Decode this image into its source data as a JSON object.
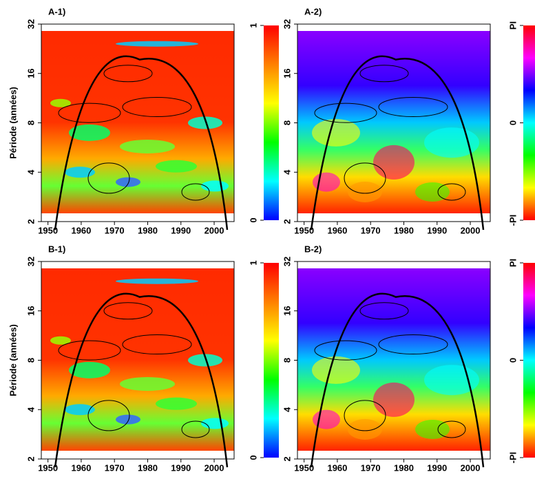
{
  "chart_data": [
    {
      "type": "coherence",
      "title": "A-1)",
      "ylabel": "Période (années)",
      "xlim": [
        1948,
        2006
      ],
      "xticks": [
        1950,
        1960,
        1970,
        1980,
        1990,
        2000
      ],
      "ylim": [
        2,
        32
      ],
      "yticks": [
        2,
        4,
        8,
        16,
        32
      ],
      "log_scale": true,
      "colorbar_lim": [
        0,
        1
      ],
      "colorbar_ticks": [
        0,
        1
      ],
      "colorbar_colors": [
        "#0000ff",
        "#00ffff",
        "#00ff00",
        "#ffff00",
        "#ff8000",
        "#ff0000"
      ]
    },
    {
      "type": "phase",
      "title": "A-2)",
      "xlim": [
        1948,
        2006
      ],
      "xticks": [
        1950,
        1960,
        1970,
        1980,
        1990,
        2000
      ],
      "ylim": [
        2,
        32
      ],
      "yticks": [
        2,
        4,
        8,
        16,
        32
      ],
      "log_scale": true,
      "colorbar_lim": [
        -3.14159,
        3.14159
      ],
      "colorbar_ticks": [
        {
          "value": -3.14159,
          "label": "-PI"
        },
        0,
        {
          "value": 3.14159,
          "label": "PI"
        }
      ],
      "colorbar_colors": [
        "#ff0000",
        "#ffff00",
        "#00ff00",
        "#00ffff",
        "#0000ff",
        "#ff00ff",
        "#ff0000"
      ]
    },
    {
      "type": "coherence",
      "title": "B-1)",
      "ylabel": "Période (années)",
      "xlim": [
        1948,
        2006
      ],
      "xticks": [
        1950,
        1960,
        1970,
        1980,
        1990,
        2000
      ],
      "ylim": [
        2,
        32
      ],
      "yticks": [
        2,
        4,
        8,
        16,
        32
      ],
      "log_scale": true,
      "colorbar_lim": [
        0,
        1
      ],
      "colorbar_ticks": [
        0,
        1
      ],
      "colorbar_colors": [
        "#0000ff",
        "#00ffff",
        "#00ff00",
        "#ffff00",
        "#ff8000",
        "#ff0000"
      ]
    },
    {
      "type": "phase",
      "title": "B-2)",
      "xlim": [
        1948,
        2006
      ],
      "xticks": [
        1950,
        1960,
        1970,
        1980,
        1990,
        2000
      ],
      "ylim": [
        2,
        32
      ],
      "yticks": [
        2,
        4,
        8,
        16,
        32
      ],
      "log_scale": true,
      "colorbar_lim": [
        -3.14159,
        3.14159
      ],
      "colorbar_ticks": [
        {
          "value": -3.14159,
          "label": "-PI"
        },
        0,
        {
          "value": 3.14159,
          "label": "PI"
        }
      ],
      "colorbar_colors": [
        "#ff0000",
        "#ffff00",
        "#00ff00",
        "#00ffff",
        "#0000ff",
        "#ff00ff",
        "#ff0000"
      ]
    }
  ]
}
